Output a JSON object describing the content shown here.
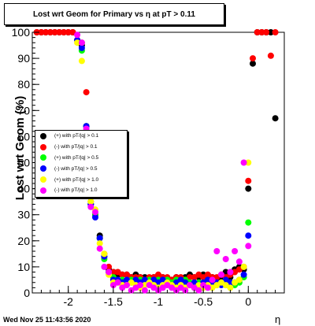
{
  "chart_data": {
    "type": "scatter",
    "title": "Lost wrt Geom for Primary vs   η at pT > 0.11",
    "xlabel": "η",
    "ylabel": "Lost wrt Geom (%)",
    "xlim": [
      -2.4,
      0.4
    ],
    "ylim": [
      0,
      100
    ],
    "xticks": [
      -2,
      -1.5,
      -1,
      -0.5,
      0
    ],
    "yticks": [
      0,
      10,
      20,
      30,
      40,
      50,
      60,
      70,
      80,
      90,
      100
    ],
    "grid": false,
    "legend_position": "middle-left",
    "series": [
      {
        "name": "(+) with pT/|q| > 0.1",
        "color": "#000000",
        "points": [
          [
            -2.35,
            100
          ],
          [
            -2.3,
            100
          ],
          [
            -2.25,
            100
          ],
          [
            -2.2,
            100
          ],
          [
            -2.15,
            100
          ],
          [
            -2.1,
            100
          ],
          [
            -2.05,
            100
          ],
          [
            -2.0,
            100
          ],
          [
            -1.95,
            100
          ],
          [
            -1.9,
            97
          ],
          [
            -1.85,
            95
          ],
          [
            -1.8,
            64
          ],
          [
            -1.75,
            34
          ],
          [
            -1.7,
            30
          ],
          [
            -1.65,
            22
          ],
          [
            -1.6,
            14
          ],
          [
            -1.55,
            9
          ],
          [
            -1.5,
            8
          ],
          [
            -1.45,
            7
          ],
          [
            -1.4,
            7
          ],
          [
            -1.35,
            7
          ],
          [
            -1.3,
            6
          ],
          [
            -1.25,
            7
          ],
          [
            -1.2,
            6
          ],
          [
            -1.15,
            6
          ],
          [
            -1.1,
            5
          ],
          [
            -1.05,
            6
          ],
          [
            -1.0,
            6
          ],
          [
            -0.95,
            6
          ],
          [
            -0.9,
            5
          ],
          [
            -0.85,
            5
          ],
          [
            -0.8,
            6
          ],
          [
            -0.75,
            5
          ],
          [
            -0.7,
            6
          ],
          [
            -0.65,
            7
          ],
          [
            -0.6,
            6
          ],
          [
            -0.55,
            6
          ],
          [
            -0.5,
            7
          ],
          [
            -0.45,
            6
          ],
          [
            -0.4,
            6
          ],
          [
            -0.35,
            5
          ],
          [
            -0.3,
            6
          ],
          [
            -0.25,
            8
          ],
          [
            -0.2,
            6
          ],
          [
            -0.15,
            9
          ],
          [
            -0.1,
            10
          ],
          [
            -0.05,
            9
          ],
          [
            0.0,
            40
          ],
          [
            0.05,
            88
          ],
          [
            0.1,
            100
          ],
          [
            0.15,
            100
          ],
          [
            0.2,
            100
          ],
          [
            0.25,
            100
          ],
          [
            0.3,
            67
          ]
        ]
      },
      {
        "name": "(-) with pT/|q| > 0.1",
        "color": "#ff0000",
        "points": [
          [
            -2.35,
            100
          ],
          [
            -2.3,
            100
          ],
          [
            -2.25,
            100
          ],
          [
            -2.2,
            100
          ],
          [
            -2.15,
            100
          ],
          [
            -2.1,
            100
          ],
          [
            -2.05,
            100
          ],
          [
            -2.0,
            100
          ],
          [
            -1.95,
            100
          ],
          [
            -1.9,
            97
          ],
          [
            -1.85,
            96
          ],
          [
            -1.8,
            77
          ],
          [
            -1.75,
            35
          ],
          [
            -1.7,
            30
          ],
          [
            -1.65,
            21
          ],
          [
            -1.6,
            15
          ],
          [
            -1.55,
            10
          ],
          [
            -1.5,
            8
          ],
          [
            -1.45,
            8
          ],
          [
            -1.4,
            7
          ],
          [
            -1.35,
            7
          ],
          [
            -1.3,
            6
          ],
          [
            -1.25,
            6
          ],
          [
            -1.2,
            6
          ],
          [
            -1.15,
            5
          ],
          [
            -1.1,
            6
          ],
          [
            -1.05,
            6
          ],
          [
            -1.0,
            7
          ],
          [
            -0.95,
            6
          ],
          [
            -0.9,
            6
          ],
          [
            -0.85,
            5
          ],
          [
            -0.8,
            6
          ],
          [
            -0.75,
            6
          ],
          [
            -0.7,
            5
          ],
          [
            -0.65,
            6
          ],
          [
            -0.6,
            6
          ],
          [
            -0.55,
            7
          ],
          [
            -0.5,
            6
          ],
          [
            -0.45,
            7
          ],
          [
            -0.4,
            6
          ],
          [
            -0.35,
            6
          ],
          [
            -0.3,
            7
          ],
          [
            -0.25,
            6
          ],
          [
            -0.2,
            7
          ],
          [
            -0.15,
            8
          ],
          [
            -0.1,
            9
          ],
          [
            -0.05,
            10
          ],
          [
            0.0,
            43
          ],
          [
            0.05,
            90
          ],
          [
            0.1,
            100
          ],
          [
            0.15,
            100
          ],
          [
            0.2,
            100
          ],
          [
            0.25,
            91
          ],
          [
            0.3,
            100
          ]
        ]
      },
      {
        "name": "(+) with pT/|q| > 0.5",
        "color": "#00ff00",
        "points": [
          [
            -1.9,
            97
          ],
          [
            -1.85,
            93
          ],
          [
            -1.8,
            64
          ],
          [
            -1.75,
            34
          ],
          [
            -1.7,
            30
          ],
          [
            -1.65,
            21
          ],
          [
            -1.6,
            13
          ],
          [
            -1.55,
            8
          ],
          [
            -1.5,
            6
          ],
          [
            -1.45,
            5
          ],
          [
            -1.4,
            5
          ],
          [
            -1.35,
            4
          ],
          [
            -1.3,
            5
          ],
          [
            -1.25,
            4
          ],
          [
            -1.2,
            5
          ],
          [
            -1.15,
            4
          ],
          [
            -1.1,
            5
          ],
          [
            -1.05,
            4
          ],
          [
            -1.0,
            5
          ],
          [
            -0.95,
            4
          ],
          [
            -0.9,
            5
          ],
          [
            -0.85,
            4
          ],
          [
            -0.8,
            5
          ],
          [
            -0.75,
            4
          ],
          [
            -0.7,
            5
          ],
          [
            -0.65,
            4
          ],
          [
            -0.6,
            3
          ],
          [
            -0.55,
            4
          ],
          [
            -0.5,
            4
          ],
          [
            -0.45,
            3
          ],
          [
            -0.4,
            4
          ],
          [
            -0.35,
            3
          ],
          [
            -0.3,
            4
          ],
          [
            -0.25,
            3
          ],
          [
            -0.2,
            4
          ],
          [
            -0.15,
            3
          ],
          [
            -0.1,
            4
          ],
          [
            -0.05,
            6
          ],
          [
            0.0,
            27
          ]
        ]
      },
      {
        "name": "(-) with pT/|q| > 0.5",
        "color": "#0000ff",
        "points": [
          [
            -1.9,
            97
          ],
          [
            -1.85,
            94
          ],
          [
            -1.8,
            64
          ],
          [
            -1.75,
            34
          ],
          [
            -1.7,
            29
          ],
          [
            -1.65,
            21
          ],
          [
            -1.6,
            14
          ],
          [
            -1.55,
            8
          ],
          [
            -1.5,
            5
          ],
          [
            -1.45,
            5
          ],
          [
            -1.4,
            4
          ],
          [
            -1.35,
            5
          ],
          [
            -1.3,
            4
          ],
          [
            -1.25,
            5
          ],
          [
            -1.2,
            4
          ],
          [
            -1.15,
            5
          ],
          [
            -1.1,
            4
          ],
          [
            -1.05,
            5
          ],
          [
            -1.0,
            4
          ],
          [
            -0.95,
            5
          ],
          [
            -0.9,
            4
          ],
          [
            -0.85,
            3
          ],
          [
            -0.8,
            4
          ],
          [
            -0.75,
            5
          ],
          [
            -0.7,
            4
          ],
          [
            -0.65,
            3
          ],
          [
            -0.6,
            4
          ],
          [
            -0.55,
            3
          ],
          [
            -0.5,
            4
          ],
          [
            -0.45,
            5
          ],
          [
            -0.4,
            4
          ],
          [
            -0.35,
            4
          ],
          [
            -0.3,
            3
          ],
          [
            -0.25,
            5
          ],
          [
            -0.2,
            4
          ],
          [
            -0.15,
            4
          ],
          [
            -0.1,
            5
          ],
          [
            -0.05,
            7
          ],
          [
            0.0,
            22
          ]
        ]
      },
      {
        "name": "(+) with pT/|q| > 1.0",
        "color": "#ffff00",
        "points": [
          [
            -1.9,
            96
          ],
          [
            -1.85,
            89
          ],
          [
            -1.8,
            62
          ],
          [
            -1.75,
            35
          ],
          [
            -1.7,
            32
          ],
          [
            -1.65,
            19
          ],
          [
            -1.6,
            15
          ],
          [
            -1.55,
            7
          ],
          [
            -1.5,
            4
          ],
          [
            -1.45,
            4
          ],
          [
            -1.4,
            3
          ],
          [
            -1.35,
            3
          ],
          [
            -1.3,
            4
          ],
          [
            -1.25,
            3
          ],
          [
            -1.2,
            2
          ],
          [
            -1.15,
            3
          ],
          [
            -1.1,
            4
          ],
          [
            -1.05,
            3
          ],
          [
            -1.0,
            2
          ],
          [
            -0.95,
            3
          ],
          [
            -0.9,
            4
          ],
          [
            -0.85,
            3
          ],
          [
            -0.8,
            2
          ],
          [
            -0.75,
            3
          ],
          [
            -0.7,
            2
          ],
          [
            -0.65,
            3
          ],
          [
            -0.6,
            2
          ],
          [
            -0.55,
            3
          ],
          [
            -0.5,
            2
          ],
          [
            -0.45,
            3
          ],
          [
            -0.4,
            2
          ],
          [
            -0.35,
            3
          ],
          [
            -0.3,
            4
          ],
          [
            -0.25,
            3
          ],
          [
            -0.2,
            2
          ],
          [
            -0.15,
            4
          ],
          [
            -0.1,
            5
          ],
          [
            -0.05,
            10
          ],
          [
            0.0,
            50
          ]
        ]
      },
      {
        "name": "(-) with pT/|q| > 1.0",
        "color": "#ff00ff",
        "points": [
          [
            -1.9,
            99
          ],
          [
            -1.85,
            96
          ],
          [
            -1.8,
            63
          ],
          [
            -1.75,
            33
          ],
          [
            -1.7,
            31
          ],
          [
            -1.65,
            17
          ],
          [
            -1.6,
            10
          ],
          [
            -1.55,
            8
          ],
          [
            -1.5,
            3
          ],
          [
            -1.45,
            4
          ],
          [
            -1.4,
            2
          ],
          [
            -1.35,
            3
          ],
          [
            -1.3,
            1
          ],
          [
            -1.25,
            2
          ],
          [
            -1.2,
            3
          ],
          [
            -1.15,
            1
          ],
          [
            -1.1,
            3
          ],
          [
            -1.05,
            2
          ],
          [
            -1.0,
            1
          ],
          [
            -0.95,
            2
          ],
          [
            -0.9,
            3
          ],
          [
            -0.85,
            2
          ],
          [
            -0.8,
            1
          ],
          [
            -0.75,
            2
          ],
          [
            -0.7,
            1
          ],
          [
            -0.65,
            3
          ],
          [
            -0.6,
            2
          ],
          [
            -0.55,
            1
          ],
          [
            -0.5,
            3
          ],
          [
            -0.45,
            2
          ],
          [
            -0.4,
            5
          ],
          [
            -0.35,
            16
          ],
          [
            -0.3,
            7
          ],
          [
            -0.25,
            13
          ],
          [
            -0.2,
            8
          ],
          [
            -0.15,
            16
          ],
          [
            -0.1,
            12
          ],
          [
            -0.05,
            50
          ],
          [
            0.0,
            18
          ]
        ]
      }
    ]
  },
  "footer": {
    "timestamp": "Wed Nov 25 11:43:56 2020"
  }
}
